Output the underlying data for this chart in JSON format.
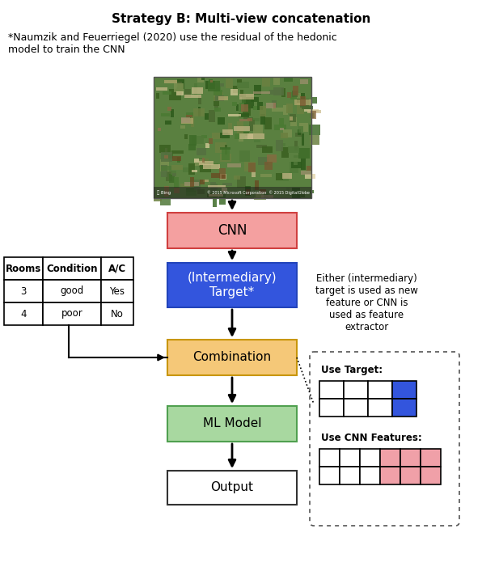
{
  "title": "Strategy B: Multi-view concatenation",
  "footnote": "*Naumzik and Feuerriegel (2020) use the residual of the hedonic\nmodel to train the CNN",
  "cnn_box": {
    "label": "CNN",
    "color": "#f4a0a0",
    "edgecolor": "#d04040"
  },
  "target_box": {
    "label": "(Intermediary)\nTarget*",
    "color": "#3355dd",
    "edgecolor": "#2244bb",
    "textcolor": "white"
  },
  "combination_box": {
    "label": "Combination",
    "color": "#f5c878",
    "edgecolor": "#c8960a"
  },
  "mlmodel_box": {
    "label": "ML Model",
    "color": "#a8d8a0",
    "edgecolor": "#50a050"
  },
  "output_box": {
    "label": "Output",
    "color": "white",
    "edgecolor": "#333333"
  },
  "table_headers": [
    "Rooms",
    "Condition",
    "A/C"
  ],
  "table_data": [
    [
      "3",
      "good",
      "Yes"
    ],
    [
      "4",
      "poor",
      "No"
    ]
  ],
  "annotation_text": "Either (intermediary)\ntarget is used as new\nfeature or CNN is\nused as feature\nextractor",
  "use_target_label": "Use Target:",
  "use_cnn_label": "Use CNN Features:",
  "blue_color": "#3355dd",
  "pink_color": "#f0a0a8",
  "background": "white",
  "fig_w": 5.96,
  "fig_h": 7.06,
  "dpi": 100
}
